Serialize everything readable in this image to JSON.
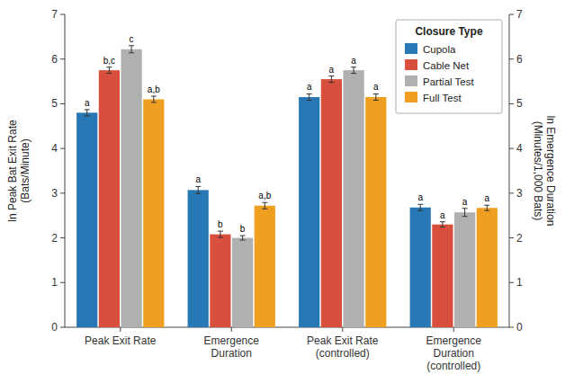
{
  "chart_data": {
    "type": "bar",
    "categories": [
      "Peak Exit Rate",
      "Emergence\nDuration",
      "Peak Exit Rate\n(controlled)",
      "Emergence\nDuration\n(controlled)"
    ],
    "series": [
      {
        "name": "Cupola",
        "color": "#2878b5",
        "values": [
          4.8,
          3.07,
          5.15,
          2.68
        ],
        "errors": [
          0.07,
          0.08,
          0.07,
          0.07
        ],
        "significance_labels": [
          "a",
          "a",
          "a",
          "a"
        ]
      },
      {
        "name": "Cable Net",
        "color": "#d94f3d",
        "values": [
          5.75,
          2.08,
          5.55,
          2.3
        ],
        "errors": [
          0.07,
          0.07,
          0.07,
          0.06
        ],
        "significance_labels": [
          "b,c",
          "b",
          "a",
          "a"
        ]
      },
      {
        "name": "Partial Test",
        "color": "#b0b0b0",
        "values": [
          6.22,
          2.0,
          5.75,
          2.57
        ],
        "errors": [
          0.08,
          0.05,
          0.07,
          0.09
        ],
        "significance_labels": [
          "c",
          "b",
          "a",
          "a"
        ]
      },
      {
        "name": "Full Test",
        "color": "#f0a020",
        "values": [
          5.1,
          2.72,
          5.15,
          2.67
        ],
        "errors": [
          0.07,
          0.07,
          0.07,
          0.06
        ],
        "significance_labels": [
          "a,b",
          "a,b",
          "a",
          "a"
        ]
      }
    ],
    "ylabel": "ln Peak Bat Exit Rate\n(Bats/Minute)",
    "y2label": "ln Emergence Duration\n(Minutes/1,000 Bats)",
    "ylim": [
      0,
      7
    ],
    "yticks": [
      0,
      1,
      2,
      3,
      4,
      5,
      6,
      7
    ],
    "y2lim": [
      0,
      7
    ],
    "y2ticks": [
      0,
      1,
      2,
      3,
      4,
      5,
      6,
      7
    ],
    "legend_title": "Closure Type",
    "legend": "upper right",
    "grid": false
  }
}
